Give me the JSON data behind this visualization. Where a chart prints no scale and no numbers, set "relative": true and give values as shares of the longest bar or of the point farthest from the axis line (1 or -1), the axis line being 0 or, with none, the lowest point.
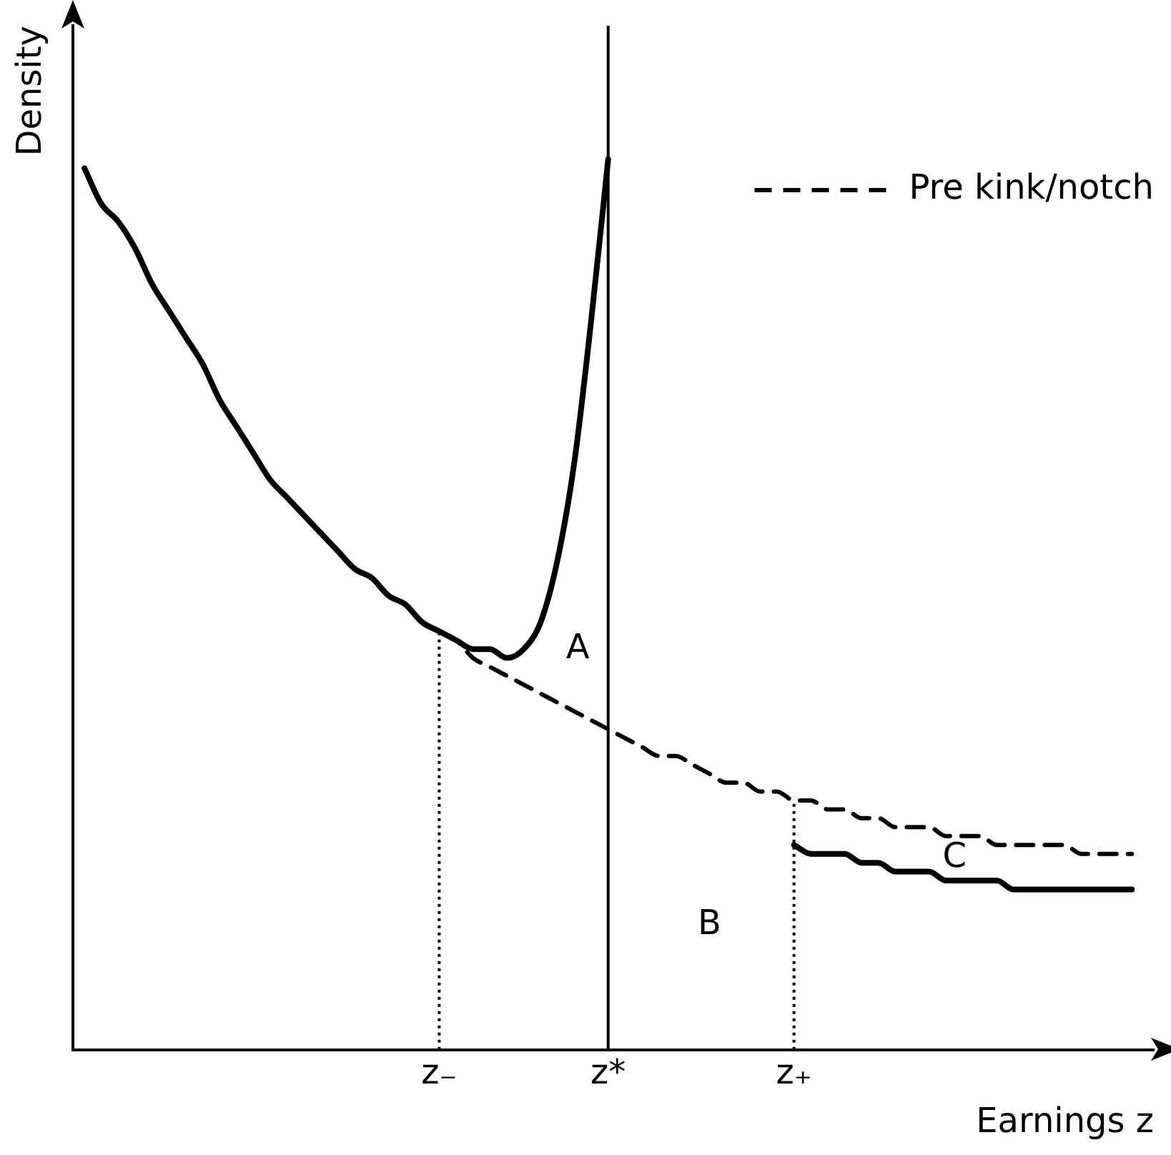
{
  "chart_data": {
    "type": "line",
    "relative": true,
    "xlabel": "Earnings z",
    "ylabel": "Density",
    "legend": "top right",
    "marker": "none",
    "grid": false,
    "categories": [
      null,
      null,
      null,
      null,
      null,
      null,
      null,
      null,
      null,
      null,
      null,
      null,
      null,
      null,
      null,
      null,
      null,
      null,
      null,
      null,
      null,
      "z₋",
      null,
      null,
      null,
      null,
      null,
      null,
      null,
      null,
      null,
      "z*",
      null,
      null,
      null,
      null,
      null,
      null,
      null,
      null,
      null,
      null,
      "z₊",
      null,
      null,
      null,
      null,
      null,
      null,
      null,
      null,
      null,
      null,
      null,
      null,
      null,
      null,
      null,
      null,
      null,
      null,
      null,
      null
    ],
    "series": [
      {
        "color": "#000000",
        "line_style": "solid",
        "values": [
          0.99,
          0.95,
          0.93,
          0.9,
          0.86,
          0.83,
          0.8,
          0.77,
          0.73,
          0.7,
          0.67,
          0.64,
          0.62,
          0.6,
          0.58,
          0.56,
          0.54,
          0.53,
          0.51,
          0.5,
          0.48,
          0.47,
          0.46,
          0.45,
          0.45,
          0.44,
          0.45,
          0.48,
          0.55,
          0.66,
          0.82,
          1.0,
          null,
          null,
          null,
          null,
          null,
          null,
          null,
          null,
          null,
          null,
          0.23,
          0.22,
          0.22,
          0.22,
          0.21,
          0.21,
          0.2,
          0.2,
          0.2,
          0.19,
          0.19,
          0.19,
          0.19,
          0.18,
          0.18,
          0.18,
          0.18,
          0.18,
          0.18,
          0.18,
          0.18
        ]
      },
      {
        "name": "Pre kink/notch",
        "color": "#000000",
        "line_style": "dashed",
        "values": [
          0.99,
          0.95,
          0.93,
          0.9,
          0.86,
          0.83,
          0.8,
          0.77,
          0.73,
          0.7,
          0.67,
          0.64,
          0.62,
          0.6,
          0.58,
          0.56,
          0.54,
          0.53,
          0.51,
          0.5,
          0.48,
          0.47,
          0.46,
          0.44,
          0.43,
          0.42,
          0.41,
          0.4,
          0.39,
          0.38,
          0.37,
          0.36,
          0.35,
          0.34,
          0.33,
          0.33,
          0.32,
          0.31,
          0.3,
          0.3,
          0.29,
          0.29,
          0.28,
          0.28,
          0.27,
          0.27,
          0.26,
          0.26,
          0.25,
          0.25,
          0.25,
          0.24,
          0.24,
          0.24,
          0.23,
          0.23,
          0.23,
          0.23,
          0.23,
          0.22,
          0.22,
          0.22,
          0.22
        ]
      }
    ],
    "ref_lines": [
      {
        "axis": "x",
        "value": "z₋",
        "line_style": "dotted",
        "color": "#000000"
      },
      {
        "axis": "x",
        "value": "z*",
        "line_style": "solid",
        "color": "#000000"
      },
      {
        "axis": "x",
        "value": "z₊",
        "line_style": "dotted",
        "color": "#000000"
      }
    ],
    "annotations": [
      "A",
      "B",
      "C"
    ]
  }
}
